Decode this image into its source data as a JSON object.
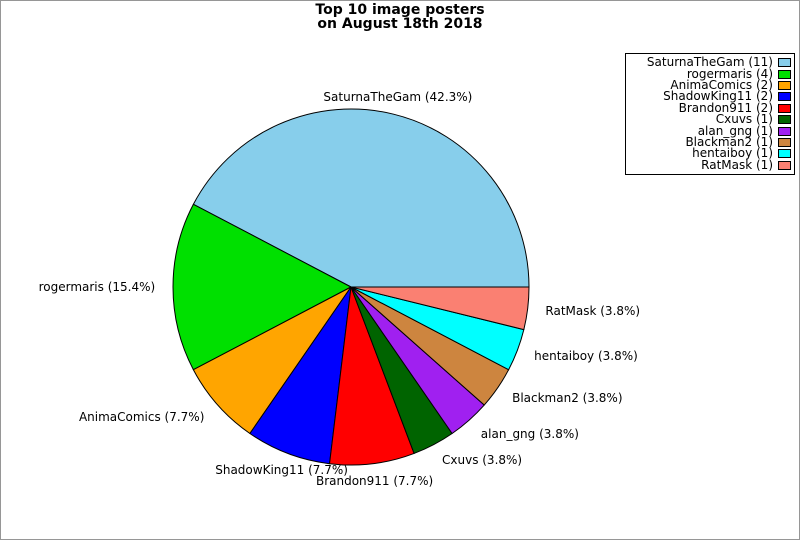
{
  "title": {
    "line1": "Top 10 image posters",
    "line2": "on August 18th 2018"
  },
  "chart_data": {
    "type": "pie",
    "title": "Top 10 image posters on August 18th 2018",
    "total_count": 26,
    "start_angle_deg": 0,
    "direction": "counterclockwise",
    "legend_position": "upper right",
    "slice_label_format": "{label} ({percent})",
    "legend_label_format": "{label} ({count})",
    "slices": [
      {
        "label": "SaturnaTheGam",
        "count": 11,
        "percent": "42.3%",
        "color": "#87CEEB"
      },
      {
        "label": "rogermaris",
        "count": 4,
        "percent": "15.4%",
        "color": "#00E000"
      },
      {
        "label": "AnimaComics",
        "count": 2,
        "percent": "7.7%",
        "color": "#FFA500"
      },
      {
        "label": "ShadowKing11",
        "count": 2,
        "percent": "7.7%",
        "color": "#0000FF"
      },
      {
        "label": "Brandon911",
        "count": 2,
        "percent": "7.7%",
        "color": "#FF0000"
      },
      {
        "label": "Cxuvs",
        "count": 1,
        "percent": "3.8%",
        "color": "#006400"
      },
      {
        "label": "alan_gng",
        "count": 1,
        "percent": "3.8%",
        "color": "#A020F0"
      },
      {
        "label": "Blackman2",
        "count": 1,
        "percent": "3.8%",
        "color": "#CD853F"
      },
      {
        "label": "hentaiboy",
        "count": 1,
        "percent": "3.8%",
        "color": "#00FFFF"
      },
      {
        "label": "RatMask",
        "count": 1,
        "percent": "3.8%",
        "color": "#FA8072"
      }
    ],
    "frame_border_color": "#969696",
    "slice_edge_color": "#000000"
  }
}
